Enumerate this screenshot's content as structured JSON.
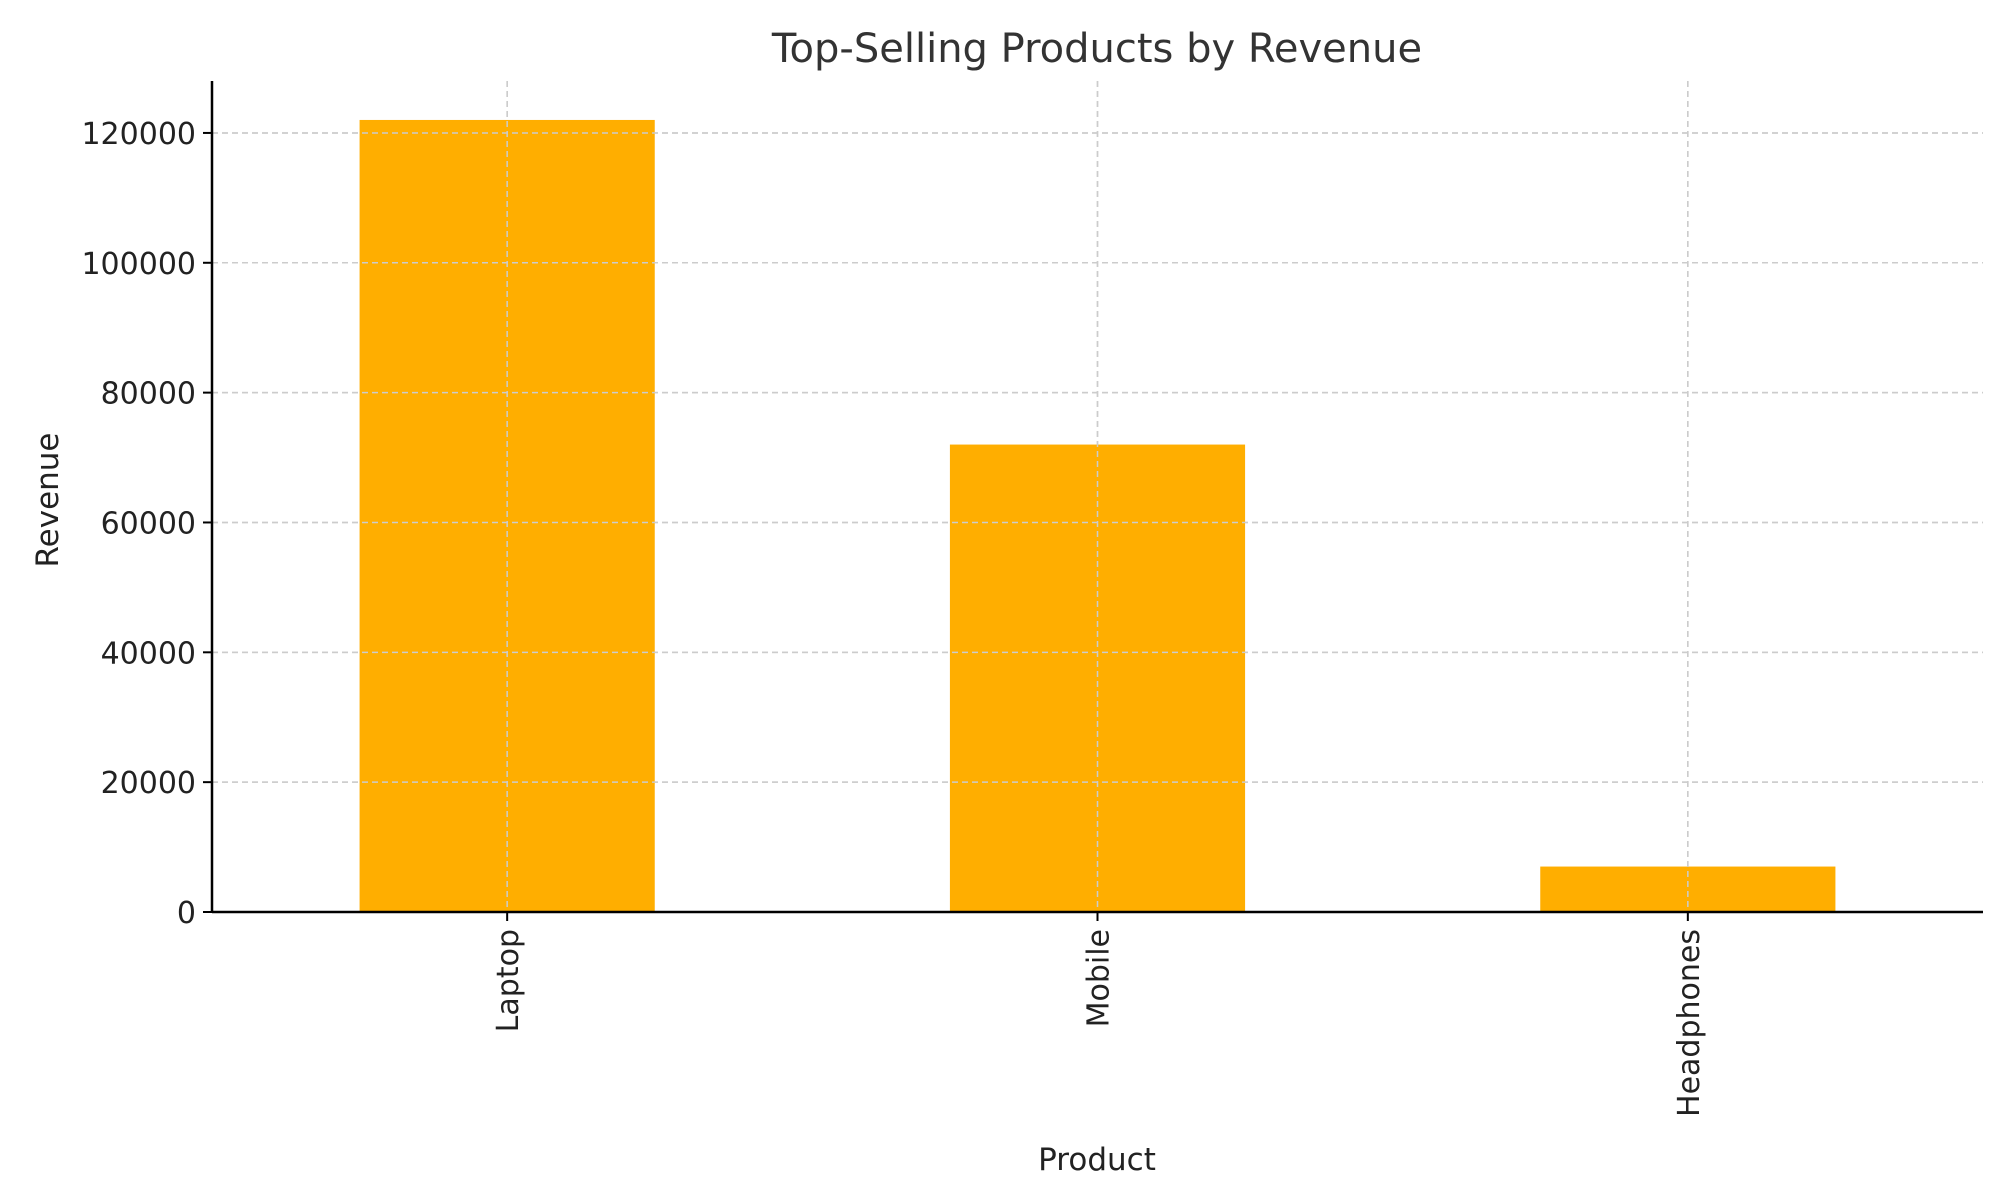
{
  "chart_data": {
    "type": "bar",
    "title": "Top-Selling Products by Revenue",
    "xlabel": "Product",
    "ylabel": "Revenue",
    "categories": [
      "Laptop",
      "Mobile",
      "Headphones"
    ],
    "values": [
      122000,
      72000,
      7000
    ],
    "ylim": [
      0,
      128000
    ],
    "yticks": [
      0,
      20000,
      40000,
      60000,
      80000,
      100000,
      120000
    ],
    "bar_color": "#FFAE00",
    "grid": true,
    "legend": "none"
  }
}
